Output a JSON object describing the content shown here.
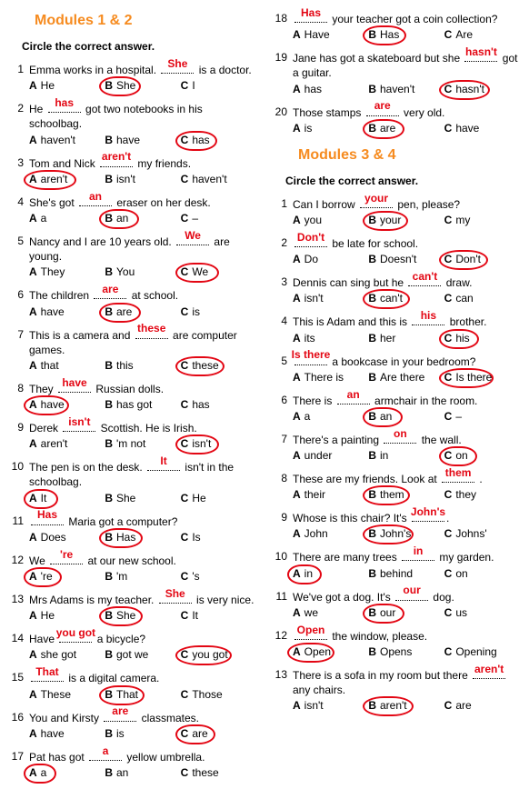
{
  "title12": "Modules 1 & 2",
  "title34": "Modules 3 & 4",
  "instr": "Circle the correct answer.",
  "mod12": [
    {
      "n": "1",
      "pre": "Emma works in a hospital. ",
      "ans": "She",
      "post": " is a doctor.",
      "a": "He",
      "b": "She",
      "c": "I",
      "circ": "b",
      "cw": 42,
      "cl": -6
    },
    {
      "n": "2",
      "pre": "He ",
      "ans": "has",
      "post": " got two notebooks in his schoolbag.",
      "a": "haven't",
      "b": "have",
      "c": "has",
      "circ": "c",
      "cw": 42,
      "cl": -6
    },
    {
      "n": "3",
      "pre": "Tom and Nick ",
      "ans": "aren't",
      "post": " my friends.",
      "a": "aren't",
      "b": "isn't",
      "c": "haven't",
      "circ": "a",
      "cw": 54,
      "cl": -6
    },
    {
      "n": "4",
      "pre": "She's got ",
      "ans": "an",
      "post": " eraser on her desk.",
      "a": "a",
      "b": "an",
      "c": "–",
      "circ": "b",
      "cw": 40,
      "cl": -6
    },
    {
      "n": "5",
      "pre": "Nancy and I are 10 years old. ",
      "ans": "We",
      "post": " are young.",
      "a": "They",
      "b": "You",
      "c": "We",
      "circ": "c",
      "cw": 44,
      "cl": -6
    },
    {
      "n": "6",
      "pre": "The children ",
      "ans": "are",
      "post": " at school.",
      "a": "have",
      "b": "are",
      "c": "is",
      "circ": "b",
      "cw": 42,
      "cl": -6
    },
    {
      "n": "7",
      "pre": "This is a camera and ",
      "ans": "these",
      "post": " are computer games.",
      "a": "that",
      "b": "this",
      "c": "these",
      "circ": "c",
      "cw": 50,
      "cl": -6
    },
    {
      "n": "8",
      "pre": "They ",
      "ans": "have",
      "post": " Russian dolls.",
      "a": "have",
      "b": "has got",
      "c": "has",
      "circ": "a",
      "cw": 46,
      "cl": -6
    },
    {
      "n": "9",
      "pre": "Derek ",
      "ans": "isn't",
      "post": " Scottish. He is Irish.",
      "a": "aren't",
      "b": "'m not",
      "c": "isn't",
      "circ": "c",
      "cw": 44,
      "cl": -6
    },
    {
      "n": "10",
      "pre": "The pen is on the desk. ",
      "ans": "It",
      "post": " isn't in the schoolbag.",
      "a": "It",
      "b": "She",
      "c": "He",
      "circ": "a",
      "cw": 34,
      "cl": -6
    },
    {
      "n": "11",
      "pre": "",
      "ans": "Has",
      "post": " Maria got a computer?",
      "a": "Does",
      "b": "Has",
      "c": "Is",
      "circ": "b",
      "cw": 44,
      "cl": -6
    },
    {
      "n": "12",
      "pre": "We ",
      "ans": "'re",
      "post": " at our new school.",
      "a": "'re",
      "b": "'m",
      "c": "'s",
      "circ": "a",
      "cw": 38,
      "cl": -6
    },
    {
      "n": "13",
      "pre": "Mrs Adams is my teacher. ",
      "ans": "She",
      "post": " is very nice.",
      "a": "He",
      "b": "She",
      "c": "It",
      "circ": "b",
      "cw": 44,
      "cl": -6
    },
    {
      "n": "14",
      "pre": "Have ",
      "ans": "you got",
      "post": " a bicycle?",
      "a": "she got",
      "b": "got we",
      "c": "you got",
      "circ": "c",
      "cw": 58,
      "cl": -6
    },
    {
      "n": "15",
      "pre": "",
      "ans": "That",
      "post": " is a digital camera.",
      "a": "These",
      "b": "That",
      "c": "Those",
      "circ": "b",
      "cw": 46,
      "cl": -6
    },
    {
      "n": "16",
      "pre": "You and Kirsty ",
      "ans": "are",
      "post": " classmates.",
      "a": "have",
      "b": "is",
      "c": "are",
      "circ": "c",
      "cw": 40,
      "cl": -6
    },
    {
      "n": "17",
      "pre": "Pat has got ",
      "ans": "a",
      "post": " yellow umbrella.",
      "a": "a",
      "b": "an",
      "c": "these",
      "circ": "a",
      "cw": 32,
      "cl": -6
    },
    {
      "n": "18",
      "pre": "",
      "ans": "Has",
      "post": " your teacher got a coin collection?",
      "a": "Have",
      "b": "Has",
      "c": "Are",
      "circ": "b",
      "cw": 44,
      "cl": -6,
      "col": 2
    },
    {
      "n": "19",
      "pre": "Jane has got a skateboard but she ",
      "ans": "hasn't",
      "post": " got a guitar.",
      "a": "has",
      "b": "haven't",
      "c": "hasn't",
      "circ": "c",
      "cw": 52,
      "cl": -6,
      "col": 2
    },
    {
      "n": "20",
      "pre": "Those stamps ",
      "ans": "are",
      "post": " very old.",
      "a": "is",
      "b": "are",
      "c": "have",
      "circ": "b",
      "cw": 42,
      "cl": -6,
      "col": 2
    }
  ],
  "mod34": [
    {
      "n": "1",
      "pre": "Can I borrow ",
      "ans": "your",
      "post": " pen, please?",
      "a": "you",
      "b": "your",
      "c": "my",
      "circ": "b",
      "cw": 46,
      "cl": -6
    },
    {
      "n": "2",
      "pre": "",
      "ans": "Don't",
      "post": " be late for school.",
      "a": "Do",
      "b": "Doesn't",
      "c": "Don't",
      "circ": "c",
      "cw": 50,
      "cl": -6
    },
    {
      "n": "3",
      "pre": "Dennis can sing but he ",
      "ans": "can't",
      "post": " draw.",
      "a": "isn't",
      "b": "can't",
      "c": "can",
      "circ": "b",
      "cw": 48,
      "cl": -6
    },
    {
      "n": "4",
      "pre": "This is Adam and this is ",
      "ans": "his",
      "post": " brother.",
      "a": "its",
      "b": "her",
      "c": "his",
      "circ": "c",
      "cw": 40,
      "cl": -6
    },
    {
      "n": "5",
      "pre": "",
      "ans": "Is there",
      "post": " a bookcase in your bedroom?",
      "a": "There is",
      "b": "Are there",
      "c": "Is there",
      "circ": "c",
      "cw": 56,
      "cl": -6
    },
    {
      "n": "6",
      "pre": "There is ",
      "ans": "an",
      "post": " armchair in the room.",
      "a": "a",
      "b": "an",
      "c": "–",
      "circ": "b",
      "cw": 40,
      "cl": -6
    },
    {
      "n": "7",
      "pre": "There's a painting ",
      "ans": "on",
      "post": " the wall.",
      "a": "under",
      "b": "in",
      "c": "on",
      "circ": "c",
      "cw": 38,
      "cl": -6
    },
    {
      "n": "8",
      "pre": "These are my friends. Look at ",
      "ans": "them",
      "post": " .",
      "a": "their",
      "b": "them",
      "c": "they",
      "circ": "b",
      "cw": 48,
      "cl": -6
    },
    {
      "n": "9",
      "pre": "Whose is this chair? It's ",
      "ans": "John's",
      "post": ".",
      "a": "John",
      "b": "John's",
      "c": "Johns'",
      "circ": "b",
      "cw": 52,
      "cl": -6
    },
    {
      "n": "10",
      "pre": "There are many trees ",
      "ans": "in",
      "post": " my garden.",
      "a": "in",
      "b": "behind",
      "c": "on",
      "circ": "a",
      "cw": 34,
      "cl": -6
    },
    {
      "n": "11",
      "pre": "We've got a dog. It's ",
      "ans": "our",
      "post": " dog.",
      "a": "we",
      "b": "our",
      "c": "us",
      "circ": "b",
      "cw": 42,
      "cl": -6
    },
    {
      "n": "12",
      "pre": "",
      "ans": "Open",
      "post": " the window, please.",
      "a": "Open",
      "b": "Opens",
      "c": "Opening",
      "circ": "a",
      "cw": 48,
      "cl": -6
    },
    {
      "n": "13",
      "pre": "There is a sofa in my room but there ",
      "ans": "aren't",
      "post": " any chairs.",
      "a": "isn't",
      "b": "aren't",
      "c": "are",
      "circ": "b",
      "cw": 52,
      "cl": -6
    }
  ]
}
